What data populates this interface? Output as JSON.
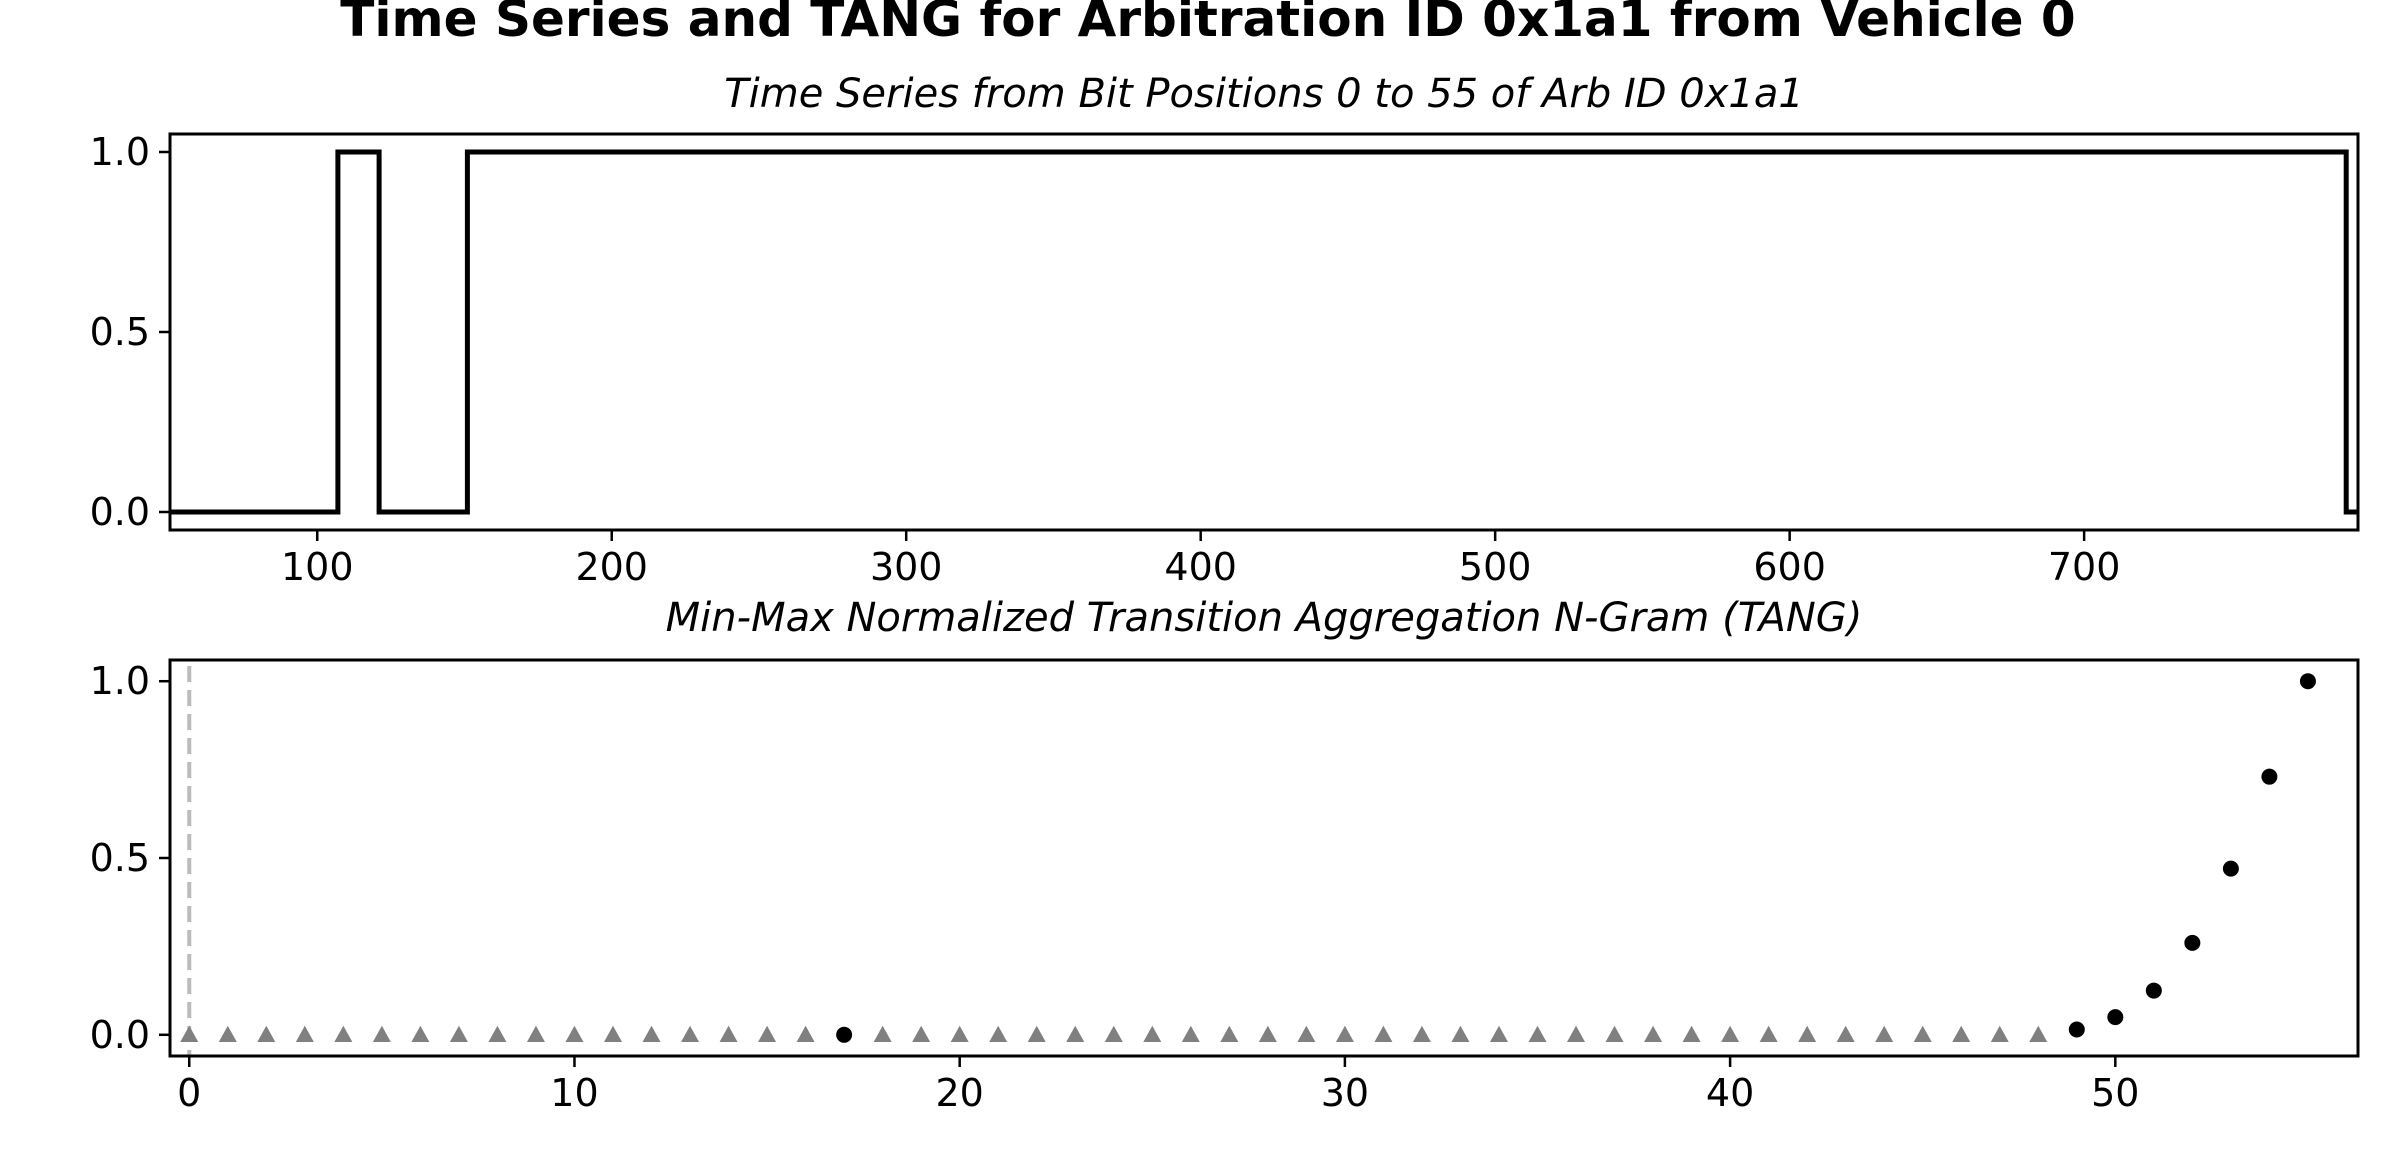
{
  "figure": {
    "title": "Time Series and TANG for Arbitration ID 0x1a1 from Vehicle 0"
  },
  "chart_data": [
    {
      "type": "line",
      "step": true,
      "title": "Time Series from Bit Positions 0 to 55 of Arb ID 0x1a1",
      "xlabel": "",
      "ylabel": "",
      "xlim": [
        50,
        793
      ],
      "ylim": [
        -0.05,
        1.05
      ],
      "xticks": [
        "100",
        "200",
        "300",
        "400",
        "500",
        "600",
        "700"
      ],
      "yticks": [
        "0.0",
        "0.5",
        "1.0"
      ],
      "color": "#000000",
      "grid": false,
      "series": [
        {
          "x": [
            50,
            107,
            107,
            121,
            121,
            151,
            151,
            789,
            789,
            793
          ],
          "values": [
            0,
            0,
            1,
            1,
            0,
            0,
            1,
            1,
            0,
            0
          ]
        }
      ]
    },
    {
      "type": "scatter",
      "title": "Min-Max Normalized Transition Aggregation N-Gram (TANG)",
      "xlabel": "",
      "ylabel": "",
      "xlim": [
        -0.5,
        56.3
      ],
      "ylim": [
        -0.06,
        1.06
      ],
      "xticks": [
        "0",
        "10",
        "20",
        "30",
        "40",
        "50"
      ],
      "yticks": [
        "0.0",
        "0.5",
        "1.0"
      ],
      "grid": false,
      "vline": {
        "x": 0,
        "color": "#bbbbbb",
        "style": "dashed"
      },
      "series": [
        {
          "marker": "triangle",
          "color": "#808080",
          "x": [
            0,
            1,
            2,
            3,
            4,
            5,
            6,
            7,
            8,
            9,
            10,
            11,
            12,
            13,
            14,
            15,
            16,
            18,
            19,
            20,
            21,
            22,
            23,
            24,
            25,
            26,
            27,
            28,
            29,
            30,
            31,
            32,
            33,
            34,
            35,
            36,
            37,
            38,
            39,
            40,
            41,
            42,
            43,
            44,
            45,
            46,
            47,
            48
          ],
          "values": [
            0,
            0,
            0,
            0,
            0,
            0,
            0,
            0,
            0,
            0,
            0,
            0,
            0,
            0,
            0,
            0,
            0,
            0,
            0,
            0,
            0,
            0,
            0,
            0,
            0,
            0,
            0,
            0,
            0,
            0,
            0,
            0,
            0,
            0,
            0,
            0,
            0,
            0,
            0,
            0,
            0,
            0,
            0,
            0,
            0,
            0,
            0,
            0
          ]
        },
        {
          "marker": "circle",
          "color": "#000000",
          "x": [
            17,
            49,
            50,
            51,
            52,
            53,
            54,
            55
          ],
          "values": [
            0.0,
            0.015,
            0.05,
            0.125,
            0.26,
            0.47,
            0.73,
            1.0
          ]
        }
      ]
    }
  ]
}
